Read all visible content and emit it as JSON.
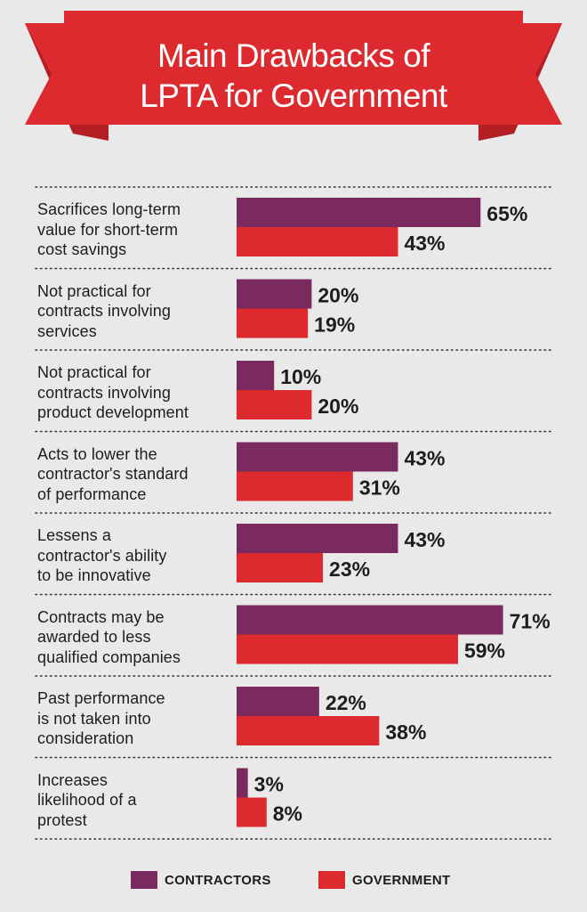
{
  "banner": {
    "title_line1": "Main Drawbacks of",
    "title_line2": "LPTA for Government"
  },
  "colors": {
    "contractors": "#7b2a5f",
    "government": "#dc2a2e",
    "banner": "#dc2a2e",
    "banner_fold": "#b41f24",
    "background": "#e9e9ea"
  },
  "chart_data": {
    "type": "bar",
    "orientation": "horizontal",
    "title": "Main Drawbacks of LPTA for Government",
    "unit": "%",
    "xlim": [
      0,
      100
    ],
    "categories": [
      [
        "Sacrifices long-term",
        "value for short-term",
        "cost savings"
      ],
      [
        "Not practical for",
        "contracts involving",
        "services"
      ],
      [
        "Not practical for",
        "contracts involving",
        "product development"
      ],
      [
        "Acts to lower the",
        "contractor's standard",
        "of performance"
      ],
      [
        "Lessens a",
        "contractor's ability",
        "to be innovative"
      ],
      [
        "Contracts may be",
        "awarded  to less",
        "qualified companies"
      ],
      [
        "Past performance",
        "is not taken into",
        "consideration"
      ],
      [
        "Increases",
        "likelihood of a",
        "protest"
      ]
    ],
    "series": [
      {
        "name": "CONTRACTORS",
        "values": [
          65,
          20,
          10,
          43,
          43,
          71,
          22,
          3
        ]
      },
      {
        "name": "GOVERNMENT",
        "values": [
          43,
          19,
          20,
          31,
          23,
          59,
          38,
          8
        ]
      }
    ],
    "legend_position": "bottom"
  },
  "legend": {
    "contractors_label": "CONTRACTORS",
    "government_label": "GOVERNMENT"
  }
}
